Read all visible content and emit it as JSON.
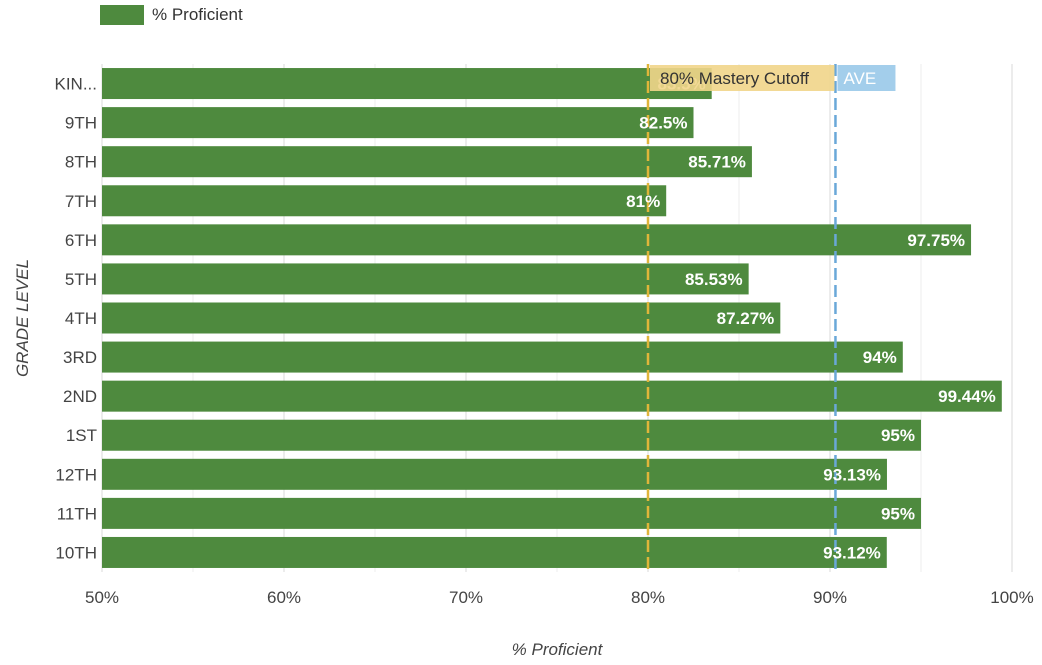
{
  "chart_data": {
    "type": "bar",
    "orientation": "horizontal",
    "categories": [
      "KIN...",
      "9TH",
      "8TH",
      "7TH",
      "6TH",
      "5TH",
      "4TH",
      "3RD",
      "2ND",
      "1ST",
      "12TH",
      "11TH",
      "10TH"
    ],
    "series": [
      {
        "name": "% Proficient",
        "values": [
          83.5,
          82.5,
          85.71,
          81,
          97.75,
          85.53,
          87.27,
          94,
          99.44,
          95,
          93.13,
          95,
          93.12
        ],
        "labels": [
          "83.5%",
          "82.5%",
          "85.71%",
          "81%",
          "97.75%",
          "85.53%",
          "87.27%",
          "94%",
          "99.44%",
          "95%",
          "93.13%",
          "95%",
          "93.12%"
        ],
        "color": "#4e8a3e"
      }
    ],
    "xlim": [
      50,
      100
    ],
    "xticks": [
      50,
      60,
      70,
      80,
      90,
      100
    ],
    "xtick_labels": [
      "50%",
      "60%",
      "70%",
      "80%",
      "90%",
      "100%"
    ],
    "xlabel": "% Proficient",
    "ylabel": "GRADE LEVEL",
    "grid": true,
    "legend_position": "top-left",
    "reference_lines": [
      {
        "label": "80% Mastery Cutoff",
        "value": 80,
        "color": "#e0b53a",
        "label_bg": "#f1d58a"
      },
      {
        "label": "AVE",
        "value": 90.3,
        "color": "#6aa8d8",
        "label_bg": "#9ecbea"
      }
    ]
  }
}
